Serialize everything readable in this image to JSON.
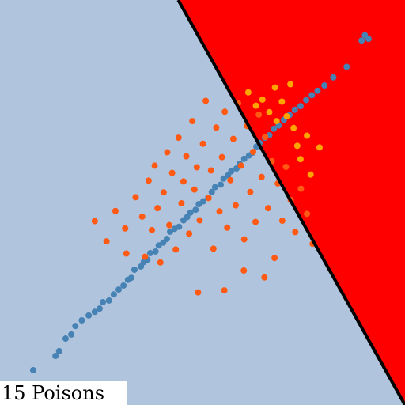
{
  "colors": {
    "region_left": "#b0c4de",
    "region_right": "#ff0000",
    "boundary": "#000000",
    "clean_class_a": "#4682b4",
    "clean_class_b": "#ff5a14",
    "poison": "#ffa500"
  },
  "chart_data": {
    "type": "scatter",
    "title": "",
    "xlabel": "",
    "ylabel": "",
    "grid": false,
    "annotation": "15 Poisons",
    "xlim": [
      0,
      100
    ],
    "ylim": [
      0,
      100
    ],
    "decision_boundary": {
      "x": [
        44,
        100
      ],
      "y": [
        100,
        0
      ]
    },
    "regions": [
      {
        "name": "left-of-boundary",
        "color": "#b0c4de"
      },
      {
        "name": "right-of-boundary",
        "color": "#ff0000"
      }
    ],
    "series": [
      {
        "name": "class-a",
        "color": "#4682b4",
        "points": [
          [
            8.2,
            8.6
          ],
          [
            13.7,
            12.1
          ],
          [
            14.6,
            13.3
          ],
          [
            16.2,
            16.4
          ],
          [
            17.6,
            17.4
          ],
          [
            18.6,
            19.5
          ],
          [
            20.2,
            20.9
          ],
          [
            21.9,
            22.1
          ],
          [
            23.4,
            23.0
          ],
          [
            24.6,
            23.8
          ],
          [
            25.4,
            25.4
          ],
          [
            26.9,
            25.8
          ],
          [
            28.1,
            27.3
          ],
          [
            29.3,
            28.5
          ],
          [
            30.5,
            29.5
          ],
          [
            31.6,
            30.9
          ],
          [
            32.4,
            31.4
          ],
          [
            33.2,
            33.4
          ],
          [
            34.8,
            34.2
          ],
          [
            35.5,
            35.3
          ],
          [
            36.4,
            35.9
          ],
          [
            37.1,
            37.5
          ],
          [
            38.4,
            37.9
          ],
          [
            39.2,
            39.4
          ],
          [
            40.3,
            40.1
          ],
          [
            41.2,
            41.0
          ],
          [
            42.0,
            42.8
          ],
          [
            43.1,
            43.5
          ],
          [
            44.2,
            44.0
          ],
          [
            45.3,
            45.6
          ],
          [
            46.2,
            46.4
          ],
          [
            47.0,
            47.5
          ],
          [
            48.3,
            48.2
          ],
          [
            49.1,
            49.6
          ],
          [
            50.2,
            50.3
          ],
          [
            51.4,
            51.2
          ],
          [
            52.3,
            52.6
          ],
          [
            53.1,
            53.8
          ],
          [
            54.5,
            54.4
          ],
          [
            55.2,
            55.9
          ],
          [
            56.3,
            56.7
          ],
          [
            57.1,
            57.7
          ],
          [
            58.4,
            58.4
          ],
          [
            59.2,
            59.6
          ],
          [
            60.3,
            60.8
          ],
          [
            61.5,
            61.6
          ],
          [
            62.4,
            62.3
          ],
          [
            63.3,
            63.8
          ],
          [
            64.1,
            64.7
          ],
          [
            65.4,
            66.0
          ],
          [
            66.5,
            66.6
          ],
          [
            67.6,
            68.2
          ],
          [
            68.8,
            69.0
          ],
          [
            70.1,
            70.4
          ],
          [
            71.5,
            71.6
          ],
          [
            72.8,
            72.9
          ],
          [
            74.2,
            73.8
          ],
          [
            75.6,
            75.3
          ],
          [
            77.0,
            76.5
          ],
          [
            78.4,
            77.6
          ],
          [
            80.1,
            78.9
          ],
          [
            82.3,
            80.9
          ],
          [
            85.6,
            83.5
          ],
          [
            89.3,
            90.0
          ],
          [
            90.1,
            91.3
          ],
          [
            91.0,
            90.4
          ]
        ]
      },
      {
        "name": "class-b",
        "color": "#ff5a14",
        "points": [
          [
            23.4,
            45.4
          ],
          [
            26.3,
            40.4
          ],
          [
            28.5,
            47.9
          ],
          [
            30.9,
            43.6
          ],
          [
            31.2,
            37.4
          ],
          [
            33.5,
            51.3
          ],
          [
            35.1,
            46.5
          ],
          [
            35.8,
            36.6
          ],
          [
            36.7,
            55.4
          ],
          [
            37.5,
            43.2
          ],
          [
            38.2,
            59.1
          ],
          [
            38.9,
            48.6
          ],
          [
            39.6,
            35.2
          ],
          [
            40.4,
            52.5
          ],
          [
            41.3,
            62.4
          ],
          [
            41.8,
            44.4
          ],
          [
            42.5,
            57.3
          ],
          [
            43.4,
            38.4
          ],
          [
            44.1,
            66.0
          ],
          [
            44.8,
            49.8
          ],
          [
            45.3,
            55.2
          ],
          [
            46.0,
            61.4
          ],
          [
            46.7,
            42.3
          ],
          [
            47.5,
            70.1
          ],
          [
            48.0,
            53.2
          ],
          [
            48.6,
            58.7
          ],
          [
            49.3,
            45.6
          ],
          [
            50.1,
            64.5
          ],
          [
            50.8,
            75.1
          ],
          [
            51.5,
            51.1
          ],
          [
            52.1,
            57.9
          ],
          [
            52.7,
            38.6
          ],
          [
            53.4,
            68.5
          ],
          [
            54.2,
            47.8
          ],
          [
            54.8,
            61.2
          ],
          [
            55.5,
            72.4
          ],
          [
            56.1,
            43.8
          ],
          [
            56.9,
            55.5
          ],
          [
            57.6,
            65.7
          ],
          [
            58.2,
            49.3
          ],
          [
            58.8,
            74.5
          ],
          [
            59.5,
            59.1
          ],
          [
            60.3,
            40.9
          ],
          [
            61.0,
            68.9
          ],
          [
            61.8,
            52.6
          ],
          [
            62.5,
            62.5
          ],
          [
            63.1,
            45.2
          ],
          [
            63.9,
            71.7
          ],
          [
            64.6,
            56.3
          ],
          [
            65.5,
            66.2
          ],
          [
            66.2,
            48.6
          ],
          [
            67.1,
            60.2
          ],
          [
            67.8,
            36.3
          ],
          [
            68.6,
            54.7
          ],
          [
            69.7,
            45.5
          ],
          [
            70.6,
            58.8
          ],
          [
            71.8,
            50.6
          ],
          [
            72.9,
            42.7
          ],
          [
            74.3,
            53.4
          ],
          [
            75.8,
            47.2
          ],
          [
            77.2,
            39.8
          ],
          [
            60.2,
            33.2
          ],
          [
            55.4,
            28.3
          ],
          [
            48.9,
            27.8
          ],
          [
            65.3,
            31.5
          ]
        ]
      },
      {
        "name": "poisons",
        "color": "#ffa500",
        "points": [
          [
            61.3,
            77.2
          ],
          [
            63.2,
            73.9
          ],
          [
            64.8,
            75.4
          ],
          [
            66.5,
            72.3
          ],
          [
            67.9,
            78.4
          ],
          [
            68.3,
            70.1
          ],
          [
            69.6,
            74.9
          ],
          [
            70.8,
            71.3
          ],
          [
            71.7,
            79.2
          ],
          [
            72.5,
            68.4
          ],
          [
            73.4,
            64.0
          ],
          [
            74.2,
            60.7
          ],
          [
            75.8,
            66.5
          ],
          [
            76.7,
            56.9
          ],
          [
            78.9,
            63.6
          ]
        ]
      }
    ]
  }
}
